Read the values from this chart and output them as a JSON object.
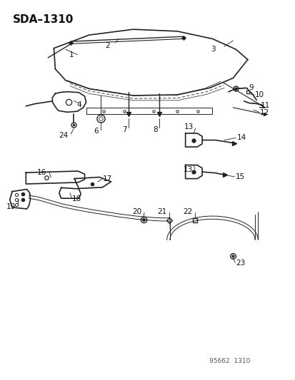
{
  "title": "SDA–1310",
  "background_color": "#ffffff",
  "fig_width": 4.14,
  "fig_height": 5.33,
  "dpi": 100,
  "watermark": "95662  1310",
  "line_color": "#222222",
  "label_color": "#111111",
  "label_fontsize": 7.5,
  "title_fontsize": 11
}
